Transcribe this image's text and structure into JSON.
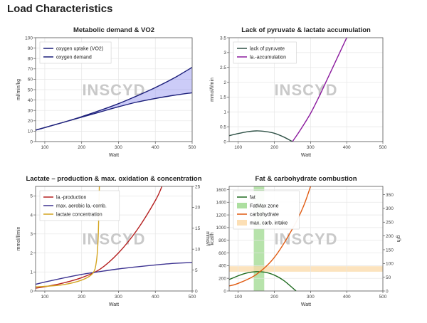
{
  "page": {
    "title": "Load Characteristics",
    "watermark": "INSCYD"
  },
  "chart_data": [
    {
      "type": "line",
      "title": "Metabolic demand & VO2",
      "xlabel": "Watt",
      "ylabel": "ml/min/kg",
      "xlim": [
        75,
        500
      ],
      "ylim": [
        0,
        100
      ],
      "xticks": [
        100,
        200,
        300,
        400,
        500
      ],
      "yticks": [
        0,
        10,
        20,
        30,
        40,
        50,
        60,
        70,
        80,
        90,
        100
      ],
      "grid": true,
      "legend_position": "top-left",
      "series": [
        {
          "name": "oxygen uptake (VO2)",
          "color": "#1c1f7a",
          "x": [
            75,
            100,
            150,
            200,
            250,
            300,
            350,
            400,
            450,
            500
          ],
          "y": [
            11,
            13.5,
            18.5,
            23.5,
            28.5,
            33.5,
            38,
            41.5,
            44.5,
            47
          ]
        },
        {
          "name": "oxygen demand",
          "color": "#1c1f7a",
          "x": [
            75,
            100,
            150,
            200,
            250,
            300,
            350,
            400,
            450,
            500
          ],
          "y": [
            11,
            13.5,
            18.5,
            24,
            30,
            36.5,
            44,
            52,
            61,
            71.5
          ]
        }
      ],
      "fill_between": {
        "color": "#8f8ff0",
        "opacity": 0.45
      }
    },
    {
      "type": "line",
      "title": "Lack of pyruvate & lactate accumulation",
      "xlabel": "Watt",
      "ylabel": "mmol/l/min",
      "xlim": [
        75,
        500
      ],
      "ylim": [
        0,
        3.5
      ],
      "xticks": [
        100,
        200,
        300,
        400,
        500
      ],
      "yticks": [
        0,
        0.5,
        1,
        1.5,
        2,
        2.5,
        3,
        3.5
      ],
      "grid": true,
      "legend_position": "top-left",
      "series": [
        {
          "name": "lack of pyruvate",
          "color": "#2f5146",
          "x": [
            75,
            100,
            125,
            150,
            175,
            200,
            225,
            250
          ],
          "y": [
            0.2,
            0.27,
            0.33,
            0.36,
            0.34,
            0.28,
            0.16,
            0
          ]
        },
        {
          "name": "la.-accumulation",
          "color": "#8b1a9e",
          "x": [
            250,
            275,
            300,
            325,
            350,
            375,
            400
          ],
          "y": [
            0,
            0.45,
            0.95,
            1.55,
            2.2,
            2.85,
            3.5
          ]
        }
      ]
    },
    {
      "type": "line",
      "title": "Lactate – production & max. oxidation & concentration",
      "xlabel": "Watt",
      "ylabel": "mmol/l/min",
      "y2label": "mmol/l",
      "xlim": [
        75,
        500
      ],
      "ylim": [
        0,
        5.5
      ],
      "y2lim": [
        0,
        25
      ],
      "xticks": [
        100,
        200,
        300,
        400,
        500
      ],
      "yticks": [
        0,
        1,
        2,
        3,
        4,
        5
      ],
      "y2ticks": [
        0,
        5,
        10,
        15,
        20,
        25
      ],
      "grid": true,
      "legend_position": "top-left",
      "series": [
        {
          "name": "la.-production",
          "color": "#b52020",
          "axis": "left",
          "x": [
            75,
            100,
            150,
            200,
            250,
            300,
            350,
            400,
            418
          ],
          "y": [
            0.15,
            0.22,
            0.42,
            0.7,
            1.15,
            2.0,
            3.2,
            4.75,
            5.5
          ]
        },
        {
          "name": "max. aerobic la.-comb.",
          "color": "#3d3391",
          "axis": "left",
          "x": [
            75,
            100,
            150,
            200,
            250,
            300,
            350,
            400,
            450,
            500
          ],
          "y": [
            0.35,
            0.47,
            0.68,
            0.87,
            1.02,
            1.16,
            1.27,
            1.37,
            1.45,
            1.5
          ]
        },
        {
          "name": "lactate concentration",
          "color": "#d4a520",
          "axis": "right",
          "x": [
            75,
            100,
            150,
            200,
            230,
            240,
            245,
            248
          ],
          "y": [
            1,
            1.1,
            1.5,
            2.6,
            4.2,
            7,
            13,
            25
          ]
        }
      ]
    },
    {
      "type": "line",
      "title": "Fat & carbohydrate combustion",
      "xlabel": "Watt",
      "ylabel": "kcal/h",
      "y2label": "g/h",
      "xlim": [
        75,
        500
      ],
      "ylim": [
        0,
        1650
      ],
      "y2lim": [
        0,
        380
      ],
      "xticks": [
        100,
        200,
        300,
        400,
        500
      ],
      "yticks": [
        0,
        200,
        400,
        600,
        800,
        1000,
        1200,
        1400,
        1600
      ],
      "y2ticks": [
        0,
        50,
        100,
        150,
        200,
        250,
        300,
        350
      ],
      "grid": true,
      "legend_position": "top-left",
      "series": [
        {
          "name": "fat",
          "color": "#1f6b1f",
          "axis": "left",
          "x": [
            75,
            100,
            125,
            150,
            175,
            200,
            225,
            250,
            260
          ],
          "y": [
            180,
            240,
            285,
            305,
            295,
            250,
            170,
            50,
            0
          ]
        },
        {
          "name": "carbohydrate",
          "color": "#e05a10",
          "axis": "left",
          "x": [
            75,
            100,
            150,
            200,
            250,
            280,
            300
          ],
          "y": [
            80,
            120,
            260,
            530,
            980,
            1330,
            1650
          ]
        }
      ],
      "bands": [
        {
          "name": "FatMax zone",
          "orientation": "vertical",
          "range": [
            143,
            172
          ],
          "color": "#9fd98f"
        },
        {
          "name": "max. carb. intake",
          "orientation": "horizontal",
          "range": [
            70,
            90
          ],
          "axis": "right",
          "color": "#fbd9a8"
        }
      ]
    }
  ]
}
